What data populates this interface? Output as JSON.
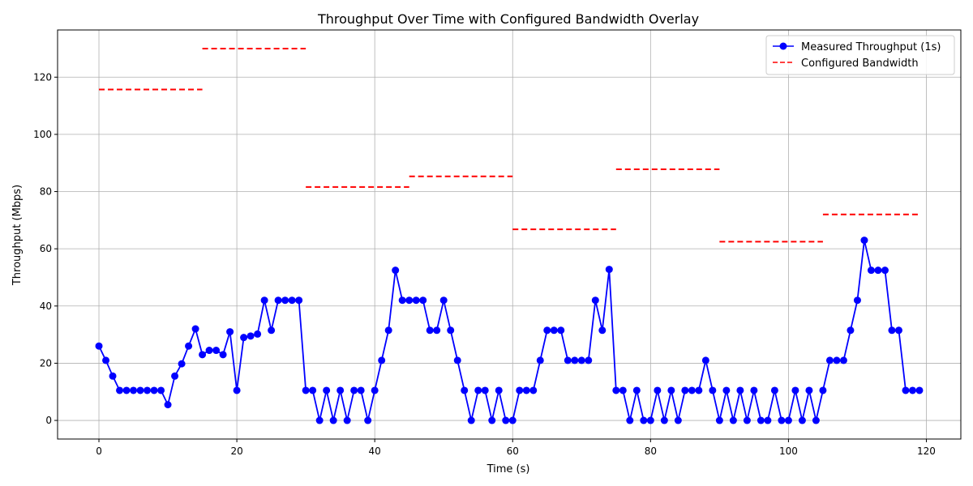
{
  "chart_data": {
    "type": "line",
    "title": "Throughput Over Time with Configured Bandwidth Overlay",
    "xlabel": "Time (s)",
    "ylabel": "Throughput (Mbps)",
    "xlim": [
      -6,
      125
    ],
    "ylim": [
      -6.5,
      136.5
    ],
    "xticks": [
      0,
      20,
      40,
      60,
      80,
      100,
      120
    ],
    "yticks": [
      0,
      20,
      40,
      60,
      80,
      100,
      120
    ],
    "grid": true,
    "legend_position": "top-right",
    "series": [
      {
        "name": "Measured Throughput (1s)",
        "style": "line-marker",
        "color": "#0000ff",
        "x": [
          0,
          1,
          2,
          3,
          4,
          5,
          6,
          7,
          8,
          9,
          10,
          11,
          12,
          13,
          14,
          15,
          16,
          17,
          18,
          19,
          20,
          21,
          22,
          23,
          24,
          25,
          26,
          27,
          28,
          29,
          30,
          31,
          32,
          33,
          34,
          35,
          36,
          37,
          38,
          39,
          40,
          41,
          42,
          43,
          44,
          45,
          46,
          47,
          48,
          49,
          50,
          51,
          52,
          53,
          54,
          55,
          56,
          57,
          58,
          59,
          60,
          61,
          62,
          63,
          64,
          65,
          66,
          67,
          68,
          69,
          70,
          71,
          72,
          73,
          74,
          75,
          76,
          77,
          78,
          79,
          80,
          81,
          82,
          83,
          84,
          85,
          86,
          87,
          88,
          89,
          90,
          91,
          92,
          93,
          94,
          95,
          96,
          97,
          98,
          99,
          100,
          101,
          102,
          103,
          104,
          105,
          106,
          107,
          108,
          109,
          110,
          111,
          112,
          113,
          114,
          115,
          116,
          117,
          118,
          119
        ],
        "values": [
          26.0,
          21.0,
          15.5,
          10.5,
          10.5,
          10.5,
          10.5,
          10.5,
          10.5,
          10.5,
          5.5,
          15.5,
          19.8,
          26.0,
          32.0,
          23.0,
          24.5,
          24.5,
          23.0,
          31.0,
          10.5,
          29.0,
          29.5,
          30.2,
          42.0,
          31.5,
          42.0,
          42.0,
          42.0,
          42.0,
          10.5,
          10.5,
          0,
          10.5,
          0,
          10.5,
          0,
          10.5,
          10.5,
          0,
          10.5,
          21.0,
          31.5,
          52.5,
          42.0,
          42.0,
          42.0,
          42.0,
          31.5,
          31.5,
          42.0,
          31.5,
          21.0,
          10.5,
          0,
          10.5,
          10.5,
          0,
          10.5,
          0,
          0,
          10.5,
          10.5,
          10.5,
          21.0,
          31.5,
          31.5,
          31.5,
          21.0,
          21.0,
          21.0,
          21.0,
          42.0,
          31.5,
          52.8,
          10.5,
          10.5,
          0,
          10.5,
          0,
          0,
          10.5,
          0,
          10.5,
          0,
          10.5,
          10.5,
          10.5,
          21.0,
          10.5,
          0,
          10.5,
          0,
          10.5,
          0,
          10.5,
          0,
          0,
          10.5,
          0,
          0,
          10.5,
          0,
          10.5,
          0,
          10.5,
          21.0,
          21.0,
          21.0,
          31.5,
          42.0,
          63.0,
          52.5,
          52.5,
          52.5,
          31.5,
          31.5,
          10.5,
          10.5,
          10.5
        ]
      },
      {
        "name": "Configured Bandwidth",
        "style": "dashed-steps",
        "color": "#ff0000",
        "segments": [
          {
            "x0": 0,
            "x1": 15,
            "value": 115.7
          },
          {
            "x0": 15,
            "x1": 30,
            "value": 130.0
          },
          {
            "x0": 30,
            "x1": 45,
            "value": 81.6
          },
          {
            "x0": 45,
            "x1": 60,
            "value": 85.3
          },
          {
            "x0": 60,
            "x1": 75,
            "value": 66.8
          },
          {
            "x0": 75,
            "x1": 90,
            "value": 87.8
          },
          {
            "x0": 90,
            "x1": 105,
            "value": 62.5
          },
          {
            "x0": 105,
            "x1": 119,
            "value": 72.0
          }
        ]
      }
    ]
  }
}
